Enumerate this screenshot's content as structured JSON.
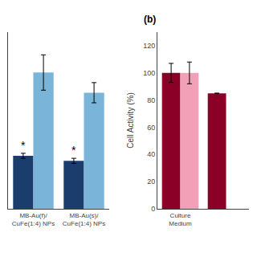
{
  "chart_data": [
    {
      "type": "bar",
      "categories": [
        "MB-Au(f)/\nCuFe(1:4) NPs",
        "MB-Au(s)/\nCuFe(1:4) NPs"
      ],
      "series": [
        {
          "color": "#1a3d6e",
          "values": [
            42,
            38
          ],
          "errors": [
            2,
            2
          ]
        },
        {
          "color": "#7ab4d8",
          "values": [
            108,
            92
          ],
          "errors": [
            14,
            8
          ]
        }
      ],
      "ylim": [
        0,
        140
      ],
      "yticks": [],
      "tick_labels": "x",
      "grid": false,
      "annotations": [
        {
          "text": "*",
          "x": 0,
          "series": 0
        },
        {
          "text": "*",
          "x": 1,
          "series": 0
        }
      ]
    },
    {
      "type": "bar",
      "title": "(b)",
      "ylabel": "Cell Activity (%)",
      "categories": [
        "Culture\nMedium",
        null
      ],
      "series": [
        {
          "color": "#8b0026",
          "values": [
            100,
            85
          ],
          "errors": [
            7,
            null
          ]
        },
        {
          "color": "#f2a0b8",
          "values": [
            100,
            null
          ],
          "errors": [
            8,
            null
          ]
        }
      ],
      "ylim": [
        0,
        130
      ],
      "yticks": [
        0,
        20,
        40,
        60,
        80,
        100,
        120
      ],
      "grid": false
    }
  ]
}
